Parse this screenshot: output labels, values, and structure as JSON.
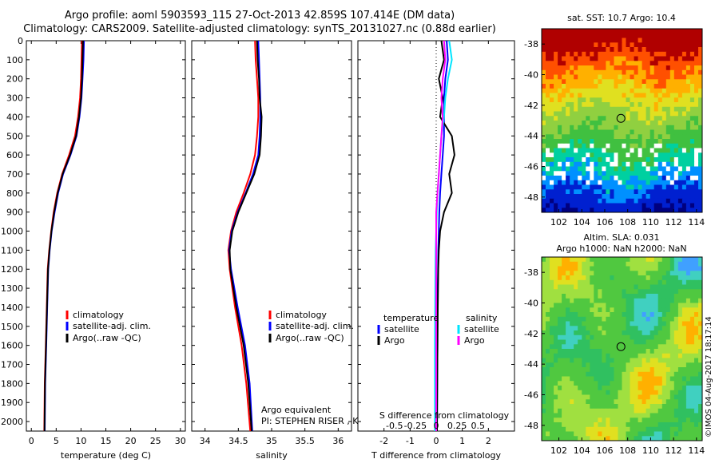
{
  "header": {
    "title_line1": "Argo profile: aoml 5903593_115 27-Oct-2013 42.859S 107.414E (DM data)",
    "title_line2": "Climatology: CARS2009. Satellite-adjusted climatology: synTS_20131027.nc (0.88d earlier)"
  },
  "colors": {
    "climatology": "#ff0000",
    "satellite": "#0000ff",
    "argo": "#000000",
    "sal_satellite": "#00e5ff",
    "sal_argo": "#ff00ff"
  },
  "chart_data": [
    {
      "type": "line",
      "name": "temperature-profile",
      "xlabel": "temperature (deg C)",
      "ylabel": "",
      "xlim": [
        -1,
        31
      ],
      "ylim": [
        2050,
        0
      ],
      "xticks": [
        0,
        5,
        10,
        15,
        20,
        25,
        30
      ],
      "yticks": [
        0,
        100,
        200,
        300,
        400,
        500,
        600,
        700,
        800,
        900,
        1000,
        1100,
        1200,
        1300,
        1400,
        1500,
        1600,
        1700,
        1800,
        1900,
        2000
      ],
      "legend": [
        "climatology",
        "satellite-adj. clim.",
        "Argo(..raw -QC)"
      ],
      "series": [
        {
          "name": "climatology",
          "x": [
            10.2,
            10.1,
            10.0,
            9.8,
            9.4,
            8.8,
            7.6,
            6.2,
            5.2,
            4.5,
            4.0,
            3.6,
            3.3,
            3.1,
            2.9,
            2.7,
            2.6
          ],
          "y": [
            0,
            100,
            200,
            300,
            400,
            500,
            600,
            700,
            800,
            900,
            1000,
            1100,
            1200,
            1400,
            1600,
            1800,
            2050
          ]
        },
        {
          "name": "satellite",
          "x": [
            10.6,
            10.5,
            10.3,
            10.1,
            9.7,
            9.1,
            7.9,
            6.4,
            5.4,
            4.7,
            4.1,
            3.7,
            3.4,
            3.2,
            3.0,
            2.8,
            2.7
          ],
          "y": [
            0,
            100,
            200,
            300,
            400,
            500,
            600,
            700,
            800,
            900,
            1000,
            1100,
            1200,
            1400,
            1600,
            1800,
            2050
          ]
        },
        {
          "name": "argo",
          "x": [
            10.4,
            10.3,
            10.2,
            10.0,
            9.6,
            9.0,
            7.8,
            6.3,
            5.3,
            4.6,
            4.05,
            3.65,
            3.35,
            3.15,
            2.95,
            2.75,
            2.65
          ],
          "y": [
            0,
            100,
            200,
            300,
            400,
            500,
            600,
            700,
            800,
            900,
            1000,
            1100,
            1200,
            1400,
            1600,
            1800,
            2050
          ]
        }
      ]
    },
    {
      "type": "line",
      "name": "salinity-profile",
      "xlabel": "salinity",
      "xlim": [
        33.8,
        36.2
      ],
      "ylim": [
        2050,
        0
      ],
      "xticks": [
        34,
        34.5,
        35,
        35.5,
        36
      ],
      "legend": [
        "climatology",
        "satellite-adj. clim.",
        "Argo(..raw -QC)"
      ],
      "series": [
        {
          "name": "climatology",
          "x": [
            34.75,
            34.76,
            34.78,
            34.8,
            34.8,
            34.78,
            34.75,
            34.68,
            34.58,
            34.47,
            34.39,
            34.35,
            34.37,
            34.45,
            34.55,
            34.62,
            34.68
          ],
          "y": [
            0,
            100,
            200,
            300,
            400,
            500,
            600,
            700,
            800,
            900,
            1000,
            1100,
            1200,
            1400,
            1600,
            1800,
            2050
          ]
        },
        {
          "name": "satellite",
          "x": [
            34.8,
            34.81,
            34.82,
            34.83,
            34.83,
            34.82,
            34.8,
            34.72,
            34.61,
            34.49,
            34.4,
            34.36,
            34.39,
            34.49,
            34.6,
            34.67,
            34.71
          ],
          "y": [
            0,
            100,
            200,
            300,
            400,
            500,
            600,
            700,
            800,
            900,
            1000,
            1100,
            1200,
            1400,
            1600,
            1800,
            2050
          ]
        },
        {
          "name": "argo",
          "x": [
            34.78,
            34.79,
            34.81,
            34.82,
            34.85,
            34.84,
            34.82,
            34.74,
            34.62,
            34.5,
            34.41,
            34.37,
            34.38,
            34.47,
            34.58,
            34.65,
            34.7
          ],
          "y": [
            0,
            100,
            200,
            300,
            400,
            500,
            600,
            700,
            800,
            900,
            1000,
            1100,
            1200,
            1400,
            1600,
            1800,
            2050
          ]
        }
      ],
      "annotations": [
        "Argo equivalent",
        "PI: STEPHEN RISER , KENNETH JOHNSON"
      ]
    },
    {
      "type": "line",
      "name": "difference-profile",
      "xlabel": "T difference from climatology",
      "xlabel_top": "S difference from climatology",
      "xlim": [
        -3,
        3
      ],
      "ylim": [
        2050,
        0
      ],
      "xticks": [
        -2,
        -1,
        0,
        1,
        2
      ],
      "xtick_labels_sal": [
        "-0.5",
        "-0.25",
        "0",
        "0.25",
        "0.5"
      ],
      "xticks_sal": [
        -1.6,
        -0.8,
        0,
        0.8,
        1.6
      ],
      "legend_headers": [
        "temperature",
        "salinity"
      ],
      "legend": [
        "satellite",
        "Argo",
        "satellite",
        "Argo"
      ],
      "series": [
        {
          "name": "T satellite",
          "x": [
            0.4,
            0.45,
            0.35,
            0.3,
            0.3,
            0.3,
            0.25,
            0.2,
            0.15,
            0.12,
            0.1,
            0.08,
            0.07,
            0.05,
            0.05,
            0.04,
            0.03
          ],
          "y": [
            0,
            100,
            200,
            300,
            400,
            500,
            600,
            700,
            800,
            900,
            1000,
            1100,
            1200,
            1400,
            1600,
            1800,
            2050
          ]
        },
        {
          "name": "T Argo",
          "x": [
            0.2,
            0.3,
            0.1,
            0.25,
            0.15,
            0.6,
            0.7,
            0.5,
            0.6,
            0.3,
            0.15,
            0.1,
            0.08,
            0.06,
            0.05,
            0.04,
            0.03
          ],
          "y": [
            0,
            100,
            200,
            300,
            400,
            500,
            600,
            700,
            800,
            900,
            1000,
            1100,
            1200,
            1400,
            1600,
            1800,
            2050
          ]
        },
        {
          "name": "S satellite",
          "x": [
            0.5,
            0.6,
            0.45,
            0.35,
            0.3,
            0.2,
            0.15,
            0.1,
            0.05,
            0.02,
            0.0,
            -0.02,
            -0.03,
            -0.04,
            -0.05,
            -0.05,
            -0.05
          ],
          "y": [
            0,
            100,
            200,
            300,
            400,
            500,
            600,
            700,
            800,
            900,
            1000,
            1100,
            1200,
            1400,
            1600,
            1800,
            2050
          ]
        },
        {
          "name": "S Argo",
          "x": [
            0.3,
            0.35,
            0.25,
            0.2,
            0.25,
            0.2,
            0.15,
            0.1,
            0.05,
            0.0,
            0.0,
            0.0,
            0.0,
            0.0,
            0.0,
            0.0,
            0.0
          ],
          "y": [
            0,
            100,
            200,
            300,
            400,
            500,
            600,
            700,
            800,
            900,
            1000,
            1100,
            1200,
            1400,
            1600,
            1800,
            2050
          ]
        }
      ]
    },
    {
      "type": "heatmap",
      "name": "sst-map",
      "title": "sat. SST: 10.7 Argo: 10.4",
      "xticks": [
        102,
        104,
        106,
        108,
        110,
        112,
        114
      ],
      "yticks": [
        -38,
        -40,
        -42,
        -44,
        -46,
        -48
      ],
      "xlim": [
        100.5,
        114.5
      ],
      "ylim": [
        -49,
        -37
      ],
      "marker": {
        "lon": 107.414,
        "lat": -42.859
      }
    },
    {
      "type": "heatmap",
      "name": "sla-map",
      "title_line1": "Altim. SLA: 0.031",
      "title_line2": "Argo h1000: NaN h2000: NaN",
      "xticks": [
        102,
        104,
        106,
        108,
        110,
        112,
        114
      ],
      "yticks": [
        -38,
        -40,
        -42,
        -44,
        -46,
        -48
      ],
      "xlim": [
        100.5,
        114.5
      ],
      "ylim": [
        -49,
        -37
      ],
      "marker": {
        "lon": 107.414,
        "lat": -42.859
      }
    }
  ],
  "credit": "©IMOS 04-Aug-2017 18:17:14"
}
